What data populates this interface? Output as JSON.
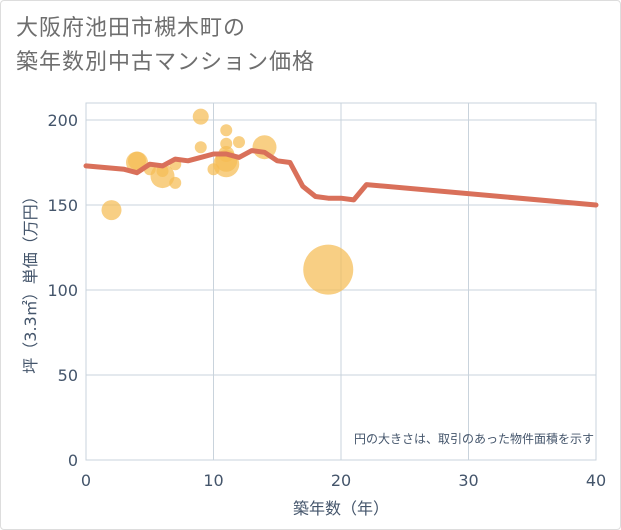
{
  "header": {
    "title_line1": "大阪府池田市槻木町の",
    "title_line2": "築年数別中古マンション価格"
  },
  "chart_data": {
    "type": "scatter",
    "title": "大阪府池田市槻木町の築年数別中古マンション価格",
    "xlabel": "築年数（年）",
    "ylabel": "坪（3.3㎡）単価（万円）",
    "xlim": [
      0,
      40
    ],
    "ylim": [
      0,
      210
    ],
    "xticks": [
      0,
      10,
      20,
      30,
      40
    ],
    "yticks": [
      0,
      50,
      100,
      150,
      200
    ],
    "grid": true,
    "note": "円の大きさは、取引のあった物件面積を示す",
    "colors": {
      "bubble": "#f5bc55",
      "line": "#d9705a",
      "grid": "#c9d3dc",
      "axis_text": "#44556b",
      "title_text": "#6e6e6e"
    },
    "bubbles": [
      {
        "x": 2,
        "y": 147,
        "size": 10
      },
      {
        "x": 4,
        "y": 175,
        "size": 11
      },
      {
        "x": 4,
        "y": 176,
        "size": 9
      },
      {
        "x": 5,
        "y": 171,
        "size": 6
      },
      {
        "x": 6,
        "y": 167,
        "size": 12
      },
      {
        "x": 6,
        "y": 170,
        "size": 6
      },
      {
        "x": 7,
        "y": 163,
        "size": 6
      },
      {
        "x": 7,
        "y": 174,
        "size": 6
      },
      {
        "x": 9,
        "y": 202,
        "size": 8
      },
      {
        "x": 9,
        "y": 184,
        "size": 6
      },
      {
        "x": 10,
        "y": 171,
        "size": 6
      },
      {
        "x": 11,
        "y": 194,
        "size": 6
      },
      {
        "x": 11,
        "y": 186,
        "size": 6
      },
      {
        "x": 11,
        "y": 180,
        "size": 8
      },
      {
        "x": 11,
        "y": 176,
        "size": 11
      },
      {
        "x": 11,
        "y": 174,
        "size": 13
      },
      {
        "x": 12,
        "y": 187,
        "size": 6
      },
      {
        "x": 14,
        "y": 184,
        "size": 12
      },
      {
        "x": 19,
        "y": 112,
        "size": 25
      }
    ],
    "trend_line": {
      "x": [
        0,
        3,
        4,
        5,
        6,
        7,
        8,
        9,
        10,
        11,
        12,
        13,
        14,
        15,
        16,
        17,
        18,
        19,
        20,
        21,
        22,
        40
      ],
      "y": [
        173,
        171,
        169,
        174,
        173,
        177,
        176,
        178,
        180,
        180,
        178,
        182,
        181,
        176,
        175,
        161,
        155,
        154,
        154,
        153,
        162,
        150
      ]
    }
  }
}
